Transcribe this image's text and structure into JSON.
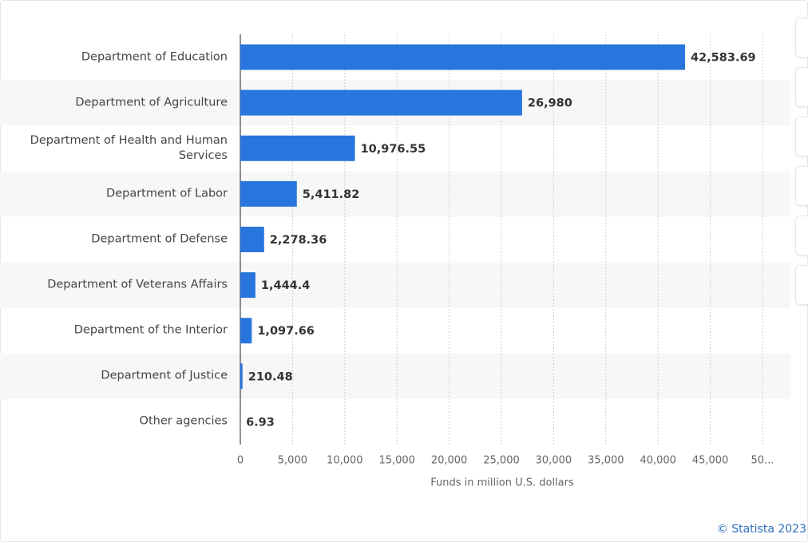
{
  "chart_data": {
    "type": "bar",
    "orientation": "horizontal",
    "categories": [
      "Department of Education",
      "Department of Agriculture",
      "Department of Health and Human Services",
      "Department of Labor",
      "Department of Defense",
      "Department of Veterans Affairs",
      "Department of the Interior",
      "Department of Justice",
      "Other agencies"
    ],
    "values": [
      42583.69,
      26980,
      10976.55,
      5411.82,
      2278.36,
      1444.4,
      1097.66,
      210.48,
      6.93
    ],
    "value_labels": [
      "42,583.69",
      "26,980",
      "10,976.55",
      "5,411.82",
      "2,278.36",
      "1,444.4",
      "1,097.66",
      "210.48",
      "6.93"
    ],
    "color": "#2876dd",
    "xlim": [
      0,
      50000
    ],
    "xticks": [
      0,
      {
        "value": 5000,
        "label": "5,000"
      },
      {
        "value": 10000,
        "label": "10,000"
      },
      {
        "value": 15000,
        "label": "15,000"
      },
      {
        "value": 20000,
        "label": "20,000"
      },
      {
        "value": 25000,
        "label": "25,000"
      },
      {
        "value": 30000,
        "label": "30,000"
      },
      {
        "value": 35000,
        "label": "35,000"
      },
      {
        "value": 40000,
        "label": "40,000"
      },
      {
        "value": 45000,
        "label": "45,000"
      },
      {
        "value": 50000,
        "label": "50..."
      }
    ],
    "x_label": "Funds in million U.S. dollars",
    "grid": true,
    "source": "© Statista 2023"
  }
}
